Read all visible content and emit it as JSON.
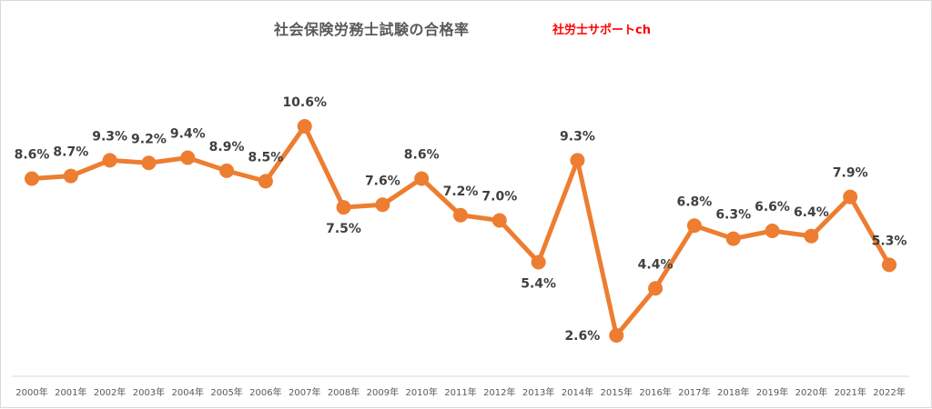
{
  "chart_data": {
    "type": "line",
    "title": "社会保険労務士試験の合格率",
    "brand": "社労士サポートch",
    "categories": [
      "2000年",
      "2001年",
      "2002年",
      "2003年",
      "2004年",
      "2005年",
      "2006年",
      "2007年",
      "2008年",
      "2009年",
      "2010年",
      "2011年",
      "2012年",
      "2013年",
      "2014年",
      "2015年",
      "2016年",
      "2017年",
      "2018年",
      "2019年",
      "2020年",
      "2021年",
      "2022年"
    ],
    "series": [
      {
        "values": [
          8.6,
          8.7,
          9.3,
          9.2,
          9.4,
          8.9,
          8.5,
          10.6,
          7.5,
          7.6,
          8.6,
          7.2,
          7.0,
          5.4,
          9.3,
          2.6,
          4.4,
          6.8,
          6.3,
          6.6,
          6.4,
          7.9,
          5.3
        ],
        "labels": [
          "8.6%",
          "8.7%",
          "9.3%",
          "9.2%",
          "9.4%",
          "8.9%",
          "8.5%",
          "10.6%",
          "7.5%",
          "7.6%",
          "8.6%",
          "7.2%",
          "7.0%",
          "5.4%",
          "9.3%",
          "2.6%",
          "4.4%",
          "6.8%",
          "6.3%",
          "6.6%",
          "6.4%",
          "7.9%",
          "5.3%"
        ],
        "label_position": [
          "above",
          "above",
          "above",
          "above",
          "above",
          "above",
          "above",
          "above",
          "below",
          "above",
          "above",
          "above",
          "above",
          "below",
          "above",
          "left",
          "above",
          "above",
          "above",
          "above",
          "above",
          "above",
          "above"
        ],
        "color": "#ed7d31"
      }
    ],
    "xlabel": "",
    "ylabel": "",
    "ylim": [
      0,
      12
    ],
    "grid": false,
    "legend": "none"
  }
}
